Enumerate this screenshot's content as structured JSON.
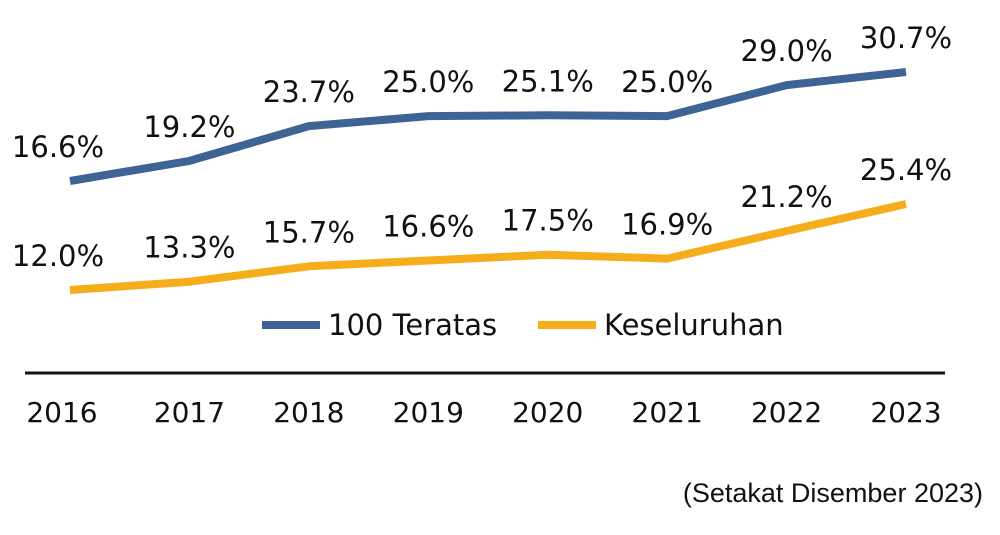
{
  "chart_data": {
    "type": "line",
    "title": "",
    "xlabel": "",
    "ylabel": "",
    "categories": [
      "2016",
      "2017",
      "2018",
      "2019",
      "2020",
      "2021",
      "2022",
      "2023"
    ],
    "ylim": [
      10,
      32
    ],
    "grid": false,
    "legend_position": "center",
    "series": [
      {
        "name": "100 Teratas",
        "color": "#3e6496",
        "values": [
          16.6,
          19.2,
          23.7,
          25.0,
          25.1,
          25.0,
          29.0,
          30.7
        ],
        "labels": [
          "16.6%",
          "19.2%",
          "23.7%",
          "25.0%",
          "25.1%",
          "25.0%",
          "29.0%",
          "30.7%"
        ]
      },
      {
        "name": "Keseluruhan",
        "color": "#f5ad1c",
        "values": [
          12.0,
          13.3,
          15.7,
          16.6,
          17.5,
          16.9,
          21.2,
          25.4
        ],
        "labels": [
          "12.0%",
          "13.3%",
          "15.7%",
          "16.6%",
          "17.5%",
          "16.9%",
          "21.2%",
          "25.4%"
        ]
      }
    ],
    "note": "(Setakat Disember 2023)"
  }
}
